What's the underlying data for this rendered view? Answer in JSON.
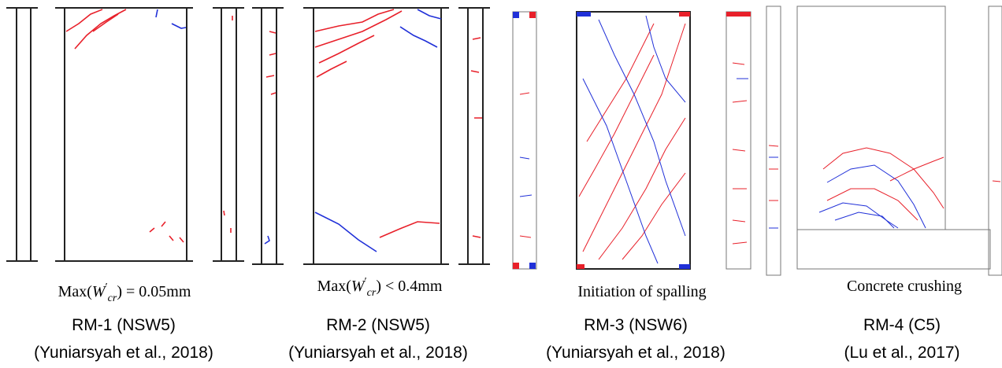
{
  "panels": [
    {
      "note": {
        "prefix": "Max(",
        "var": "W",
        "prime": "′",
        "sub": "cr",
        "rest": ") = 0.05mm"
      },
      "title": "RM-1 (NSW5)",
      "source": "(Yuniarsyah et al., 2018)"
    },
    {
      "note": {
        "prefix": "Max(",
        "var": "W",
        "prime": "′",
        "sub": "cr",
        "rest": ") < 0.4mm"
      },
      "title": "RM-2 (NSW5)",
      "source": "(Yuniarsyah et al., 2018)"
    },
    {
      "note": {
        "text": "Initiation of spalling"
      },
      "title": "RM-3 (NSW6)",
      "source": "(Yuniarsyah et al., 2018)"
    },
    {
      "note": {
        "text": "Concrete crushing"
      },
      "title": "RM-4 (C5)",
      "source": "(Lu et al., 2017)"
    }
  ]
}
